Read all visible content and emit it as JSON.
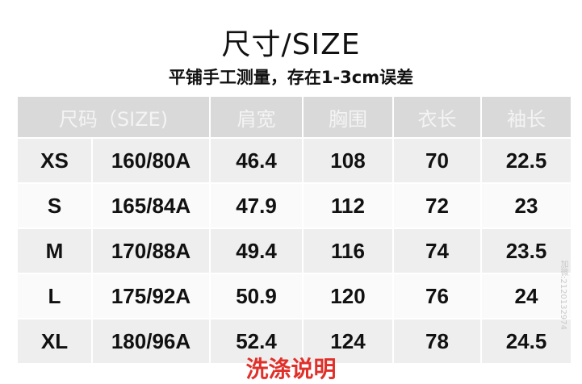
{
  "title": "尺寸/SIZE",
  "subtitle": "平铺手工测量，存在1-3cm误差",
  "headers": [
    "尺码（SIZE)",
    "肩宽",
    "胸围",
    "衣长",
    "袖长"
  ],
  "rows": [
    [
      "XS",
      "160/80A",
      "46.4",
      "108",
      "70",
      "22.5"
    ],
    [
      "S",
      "165/84A",
      "47.9",
      "112",
      "72",
      "23"
    ],
    [
      "M",
      "170/88A",
      "49.4",
      "116",
      "74",
      "23.5"
    ],
    [
      "L",
      "175/92A",
      "50.9",
      "120",
      "76",
      "24"
    ],
    [
      "XL",
      "180/96A",
      "52.4",
      "124",
      "78",
      "24.5"
    ]
  ],
  "watermark": "加微:2120132974",
  "footer": "洗涤说明"
}
